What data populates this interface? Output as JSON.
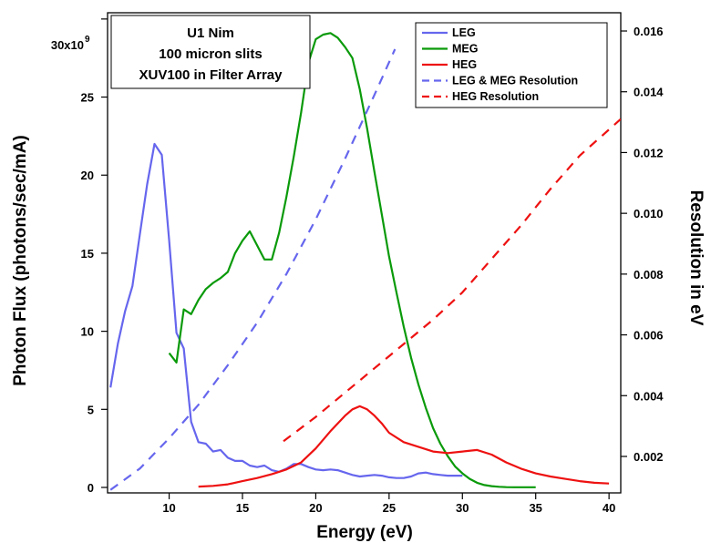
{
  "chart_data": {
    "type": "line",
    "annotation": [
      "U1 Nim",
      "100 micron slits",
      "XUV100 in Filter Array"
    ],
    "xlabel": "Energy (eV)",
    "ylabel": "Photon Flux (photons/sec/mA)",
    "y2label": "Resolution in eV",
    "y_top_label": "30x10",
    "y_top_exponent": "9",
    "xlim": [
      5.8,
      40.8
    ],
    "ylim": [
      -0.35,
      30.4
    ],
    "y2lim": [
      0.0008,
      0.0166
    ],
    "x_ticks": [
      10,
      15,
      20,
      25,
      30,
      35,
      40
    ],
    "y_ticks": [
      0,
      5,
      10,
      15,
      20,
      25
    ],
    "y2_ticks": [
      0.002,
      0.004,
      0.006,
      0.008,
      0.01,
      0.012,
      0.014,
      0.016
    ],
    "y2_tick_labels": [
      "0.002",
      "0.004",
      "0.006",
      "0.008",
      "0.010",
      "0.012",
      "0.014",
      "0.016"
    ],
    "legend_position": "top-right",
    "series": [
      {
        "name": "LEG",
        "axis": "left",
        "color": "#6666ee",
        "dash": "solid",
        "x": [
          6,
          6.5,
          7,
          7.5,
          8,
          8.5,
          9,
          9.5,
          10,
          10.5,
          11,
          11.5,
          12,
          12.5,
          13,
          13.5,
          14,
          14.5,
          15,
          15.5,
          16,
          16.5,
          17,
          17.5,
          18,
          18.5,
          19,
          19.5,
          20,
          20.5,
          21,
          21.5,
          22,
          22.5,
          23,
          23.5,
          24,
          24.5,
          25,
          25.5,
          26,
          26.5,
          27,
          27.5,
          28,
          28.5,
          29,
          29.5,
          30
        ],
        "y": [
          6.4,
          9.2,
          11.3,
          12.9,
          16.2,
          19.4,
          22.0,
          21.3,
          15.8,
          9.9,
          8.9,
          4.2,
          2.9,
          2.8,
          2.3,
          2.4,
          1.9,
          1.7,
          1.7,
          1.4,
          1.3,
          1.4,
          1.1,
          1.0,
          1.2,
          1.5,
          1.5,
          1.3,
          1.15,
          1.1,
          1.15,
          1.1,
          0.95,
          0.8,
          0.7,
          0.75,
          0.8,
          0.75,
          0.65,
          0.6,
          0.6,
          0.7,
          0.9,
          0.95,
          0.85,
          0.8,
          0.75,
          0.75,
          0.75
        ]
      },
      {
        "name": "MEG",
        "axis": "left",
        "color": "#0a9a0a",
        "dash": "solid",
        "x": [
          10,
          10.5,
          11,
          11.5,
          12,
          12.5,
          13,
          13.5,
          14,
          14.5,
          15,
          15.5,
          16,
          16.5,
          17,
          17.5,
          18,
          18.5,
          19,
          19.5,
          20,
          20.5,
          21,
          21.5,
          22,
          22.5,
          23,
          23.5,
          24,
          24.5,
          25,
          25.5,
          26,
          26.5,
          27,
          27.5,
          28,
          28.5,
          29,
          29.5,
          30,
          30.5,
          31,
          31.5,
          32,
          32.5,
          33,
          33.5,
          34,
          34.5,
          35
        ],
        "y": [
          8.6,
          8.0,
          11.4,
          11.1,
          12.0,
          12.7,
          13.1,
          13.4,
          13.8,
          15.0,
          15.8,
          16.4,
          15.5,
          14.6,
          14.6,
          16.3,
          18.6,
          21.2,
          24.0,
          27.2,
          28.7,
          29.0,
          29.1,
          28.8,
          28.2,
          27.5,
          25.5,
          23.0,
          20.2,
          17.5,
          14.8,
          12.5,
          10.3,
          8.3,
          6.6,
          5.1,
          3.8,
          2.8,
          2.0,
          1.35,
          0.9,
          0.55,
          0.3,
          0.15,
          0.08,
          0.04,
          0.02,
          0.01,
          0.01,
          0.01,
          0.01
        ]
      },
      {
        "name": "HEG",
        "axis": "left",
        "color": "#ee1111",
        "dash": "solid",
        "x": [
          12,
          13,
          14,
          15,
          16,
          17,
          18,
          19,
          20,
          21,
          22,
          22.5,
          23,
          23.5,
          24,
          24.5,
          25,
          26,
          27,
          28,
          29,
          30,
          31,
          32,
          33,
          34,
          35,
          36,
          37,
          38,
          39,
          40
        ],
        "y": [
          0.05,
          0.1,
          0.2,
          0.4,
          0.6,
          0.85,
          1.15,
          1.6,
          2.5,
          3.6,
          4.6,
          5.0,
          5.2,
          5.0,
          4.6,
          4.1,
          3.5,
          2.9,
          2.6,
          2.3,
          2.2,
          2.3,
          2.4,
          2.1,
          1.6,
          1.2,
          0.9,
          0.7,
          0.55,
          0.4,
          0.3,
          0.25
        ]
      },
      {
        "name": "LEG & MEG Resolution",
        "axis": "right",
        "color": "#6666ee",
        "dash": "dashed",
        "x": [
          6,
          8,
          10,
          12,
          14,
          16,
          18,
          20,
          22,
          24,
          25.4
        ],
        "y": [
          0.0009,
          0.0016,
          0.0026,
          0.0037,
          0.005,
          0.0064,
          0.008,
          0.0098,
          0.0118,
          0.0139,
          0.0154
        ]
      },
      {
        "name": "HEG Resolution",
        "axis": "right",
        "color": "#ee1111",
        "dash": "dashed",
        "x": [
          17.8,
          20,
          22,
          24,
          26,
          28,
          30,
          32,
          34,
          36,
          38,
          40.8
        ],
        "y": [
          0.0025,
          0.0033,
          0.0041,
          0.0049,
          0.0057,
          0.0065,
          0.0074,
          0.0085,
          0.0096,
          0.0108,
          0.0119,
          0.0131
        ]
      }
    ]
  }
}
